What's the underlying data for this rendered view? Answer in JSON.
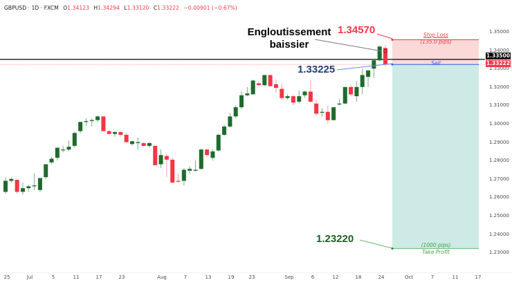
{
  "header": {
    "symbol": "GBPUSD",
    "timeframe": "1D",
    "source": "FXCM",
    "sep": " · ",
    "open_label": "O",
    "open": "1.34123",
    "high_label": "H",
    "high": "1.34294",
    "low_label": "L",
    "low": "1.33120",
    "close_label": "C",
    "close": "1.33222",
    "change": "−0.00901 (−0.67%)"
  },
  "currency": "USD",
  "price_tags": {
    "line_price": "1.33500",
    "last_price": "1.33222"
  },
  "annotations": {
    "pattern_line1": "Engloutissement",
    "pattern_line2": "baissier",
    "stop_price": "1.34570",
    "entry_price": "1.33225",
    "target_price": "1.23220",
    "stop_loss_label": "Stop Loss",
    "stop_loss_pips": "(135.0 pips)",
    "sell_label": "Sell",
    "take_profit_pips": "(1000 pips)",
    "take_profit_label": "Take Profit"
  },
  "colors": {
    "up": "#1e6b2e",
    "down": "#f23645",
    "stop_zone": "#fcd9d9",
    "target_zone": "#cdeae6",
    "stop_line": "#f23645",
    "entry_line": "#2962ff",
    "target_line": "#66bb6a"
  },
  "chart_data": {
    "type": "candlestick",
    "title": "GBPUSD · 1D · FXCM",
    "xlabel": "",
    "ylabel": "USD",
    "ylim": [
      1.2275,
      1.3627
    ],
    "y_ticks": [
      "1.35000",
      "1.34000",
      "1.33000",
      "1.32000",
      "1.31000",
      "1.30000",
      "1.29000",
      "1.28000",
      "1.27000",
      "1.26000",
      "1.25000",
      "1.24000",
      "1.23000"
    ],
    "x_ticks": [
      "25",
      "Jul",
      "5",
      "11",
      "17",
      "23",
      "Aug",
      "7",
      "13",
      "19",
      "23",
      "Sep",
      "6",
      "12",
      "18",
      "24",
      "Oct",
      "7",
      "11",
      "17"
    ],
    "grid": false,
    "horizontal_lines": [
      {
        "price": 1.335,
        "style": "solid",
        "color": "#000000"
      },
      {
        "price": 1.33222,
        "style": "dotted",
        "color": "#f23645"
      }
    ],
    "short_position": {
      "entry": 1.33225,
      "stop_loss": 1.3457,
      "take_profit": 1.2322,
      "stop_pips": 135.0,
      "target_pips": 1000
    },
    "candles": [
      {
        "o": 1.263,
        "h": 1.271,
        "l": 1.262,
        "c": 1.269
      },
      {
        "o": 1.269,
        "h": 1.271,
        "l": 1.268,
        "c": 1.27
      },
      {
        "o": 1.2695,
        "h": 1.27,
        "l": 1.262,
        "c": 1.263
      },
      {
        "o": 1.263,
        "h": 1.268,
        "l": 1.2615,
        "c": 1.265
      },
      {
        "o": 1.265,
        "h": 1.267,
        "l": 1.263,
        "c": 1.266
      },
      {
        "o": 1.266,
        "h": 1.273,
        "l": 1.264,
        "c": 1.2665
      },
      {
        "o": 1.264,
        "h": 1.27,
        "l": 1.263,
        "c": 1.2705
      },
      {
        "o": 1.271,
        "h": 1.278,
        "l": 1.27,
        "c": 1.278
      },
      {
        "o": 1.279,
        "h": 1.282,
        "l": 1.278,
        "c": 1.281
      },
      {
        "o": 1.2815,
        "h": 1.287,
        "l": 1.28,
        "c": 1.287
      },
      {
        "o": 1.286,
        "h": 1.288,
        "l": 1.2845,
        "c": 1.286
      },
      {
        "o": 1.286,
        "h": 1.291,
        "l": 1.285,
        "c": 1.2875
      },
      {
        "o": 1.288,
        "h": 1.2955,
        "l": 1.287,
        "c": 1.295
      },
      {
        "o": 1.296,
        "h": 1.301,
        "l": 1.295,
        "c": 1.301
      },
      {
        "o": 1.301,
        "h": 1.303,
        "l": 1.299,
        "c": 1.3015
      },
      {
        "o": 1.3015,
        "h": 1.303,
        "l": 1.2985,
        "c": 1.302
      },
      {
        "o": 1.302,
        "h": 1.3045,
        "l": 1.301,
        "c": 1.304
      },
      {
        "o": 1.304,
        "h": 1.304,
        "l": 1.296,
        "c": 1.296
      },
      {
        "o": 1.296,
        "h": 1.2965,
        "l": 1.294,
        "c": 1.2945
      },
      {
        "o": 1.2945,
        "h": 1.296,
        "l": 1.293,
        "c": 1.2955
      },
      {
        "o": 1.2955,
        "h": 1.296,
        "l": 1.293,
        "c": 1.294
      },
      {
        "o": 1.294,
        "h": 1.295,
        "l": 1.29,
        "c": 1.29
      },
      {
        "o": 1.289,
        "h": 1.291,
        "l": 1.288,
        "c": 1.2905
      },
      {
        "o": 1.2895,
        "h": 1.2925,
        "l": 1.286,
        "c": 1.29
      },
      {
        "o": 1.2895,
        "h": 1.29,
        "l": 1.288,
        "c": 1.288
      },
      {
        "o": 1.288,
        "h": 1.29,
        "l": 1.287,
        "c": 1.2895
      },
      {
        "o": 1.288,
        "h": 1.288,
        "l": 1.2775,
        "c": 1.2775
      },
      {
        "o": 1.278,
        "h": 1.286,
        "l": 1.276,
        "c": 1.283
      },
      {
        "o": 1.2825,
        "h": 1.2835,
        "l": 1.271,
        "c": 1.2805
      },
      {
        "o": 1.2805,
        "h": 1.2815,
        "l": 1.268,
        "c": 1.268
      },
      {
        "o": 1.269,
        "h": 1.273,
        "l": 1.268,
        "c": 1.2685
      },
      {
        "o": 1.269,
        "h": 1.276,
        "l": 1.2665,
        "c": 1.275
      },
      {
        "o": 1.2745,
        "h": 1.277,
        "l": 1.273,
        "c": 1.2755
      },
      {
        "o": 1.2745,
        "h": 1.28,
        "l": 1.274,
        "c": 1.275
      },
      {
        "o": 1.2755,
        "h": 1.2865,
        "l": 1.275,
        "c": 1.286
      },
      {
        "o": 1.286,
        "h": 1.2865,
        "l": 1.282,
        "c": 1.283
      },
      {
        "o": 1.2815,
        "h": 1.286,
        "l": 1.28,
        "c": 1.285
      },
      {
        "o": 1.2855,
        "h": 1.2945,
        "l": 1.285,
        "c": 1.294
      },
      {
        "o": 1.294,
        "h": 1.2995,
        "l": 1.2935,
        "c": 1.2985
      },
      {
        "o": 1.2985,
        "h": 1.306,
        "l": 1.298,
        "c": 1.304
      },
      {
        "o": 1.304,
        "h": 1.31,
        "l": 1.303,
        "c": 1.309
      },
      {
        "o": 1.309,
        "h": 1.3175,
        "l": 1.308,
        "c": 1.3155
      },
      {
        "o": 1.3155,
        "h": 1.32,
        "l": 1.315,
        "c": 1.3165
      },
      {
        "o": 1.316,
        "h": 1.324,
        "l": 1.316,
        "c": 1.3235
      },
      {
        "o": 1.322,
        "h": 1.323,
        "l": 1.3205,
        "c": 1.321
      },
      {
        "o": 1.321,
        "h": 1.3265,
        "l": 1.3205,
        "c": 1.3265
      },
      {
        "o": 1.3265,
        "h": 1.3265,
        "l": 1.32,
        "c": 1.3205
      },
      {
        "o": 1.3215,
        "h": 1.324,
        "l": 1.317,
        "c": 1.3195
      },
      {
        "o": 1.319,
        "h": 1.322,
        "l": 1.313,
        "c": 1.314
      },
      {
        "o": 1.314,
        "h": 1.316,
        "l": 1.313,
        "c": 1.315
      },
      {
        "o": 1.315,
        "h": 1.316,
        "l": 1.31,
        "c": 1.3115
      },
      {
        "o": 1.312,
        "h": 1.318,
        "l": 1.311,
        "c": 1.315
      },
      {
        "o": 1.3155,
        "h": 1.318,
        "l": 1.314,
        "c": 1.3175
      },
      {
        "o": 1.3175,
        "h": 1.324,
        "l": 1.3115,
        "c": 1.312
      },
      {
        "o": 1.311,
        "h": 1.313,
        "l": 1.3045,
        "c": 1.3055
      },
      {
        "o": 1.306,
        "h": 1.3085,
        "l": 1.304,
        "c": 1.3065
      },
      {
        "o": 1.3065,
        "h": 1.31,
        "l": 1.3,
        "c": 1.302
      },
      {
        "o": 1.302,
        "h": 1.309,
        "l": 1.302,
        "c": 1.309
      },
      {
        "o": 1.3105,
        "h": 1.3135,
        "l": 1.31,
        "c": 1.311
      },
      {
        "o": 1.311,
        "h": 1.32,
        "l": 1.311,
        "c": 1.32
      },
      {
        "o": 1.32,
        "h": 1.321,
        "l": 1.315,
        "c": 1.316
      },
      {
        "o": 1.315,
        "h": 1.323,
        "l": 1.312,
        "c": 1.32
      },
      {
        "o": 1.32,
        "h": 1.33,
        "l": 1.316,
        "c": 1.3265
      },
      {
        "o": 1.3255,
        "h": 1.329,
        "l": 1.32,
        "c": 1.329
      },
      {
        "o": 1.33,
        "h": 1.335,
        "l": 1.325,
        "c": 1.3345
      },
      {
        "o": 1.3345,
        "h": 1.3425,
        "l": 1.334,
        "c": 1.342
      },
      {
        "o": 1.3412,
        "h": 1.3429,
        "l": 1.3312,
        "c": 1.3322
      }
    ]
  }
}
